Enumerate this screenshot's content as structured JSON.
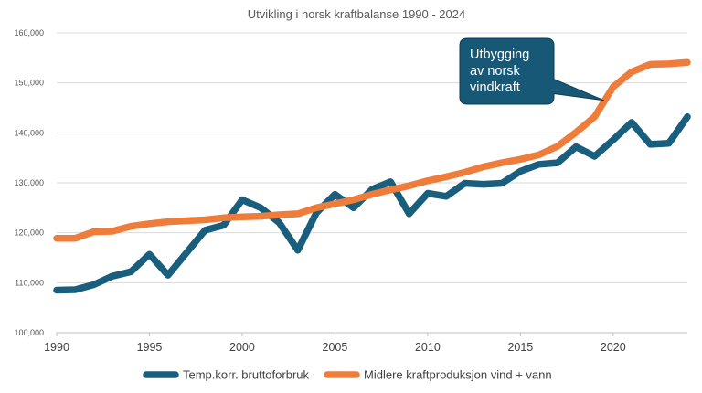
{
  "chart_data": {
    "type": "line",
    "title": "Utvikling i norsk kraftbalanse 1990 - 2024",
    "xlabel": "",
    "ylabel": "",
    "xlim": [
      1990,
      2024
    ],
    "ylim": [
      100000,
      160000
    ],
    "yticks": [
      "100,000",
      "110,000",
      "120,000",
      "130,000",
      "140,000",
      "150,000",
      "160,000"
    ],
    "ytick_values": [
      100000,
      110000,
      120000,
      130000,
      140000,
      150000,
      160000
    ],
    "xticks": [
      "1990",
      "1995",
      "2000",
      "2005",
      "2010",
      "2015",
      "2020"
    ],
    "xtick_values": [
      1990,
      1995,
      2000,
      2005,
      2010,
      2015,
      2020
    ],
    "grid": true,
    "legend_position": "bottom",
    "x": [
      1990,
      1991,
      1992,
      1993,
      1994,
      1995,
      1996,
      1997,
      1998,
      1999,
      2000,
      2001,
      2002,
      2003,
      2004,
      2005,
      2006,
      2007,
      2008,
      2009,
      2010,
      2011,
      2012,
      2013,
      2014,
      2015,
      2016,
      2017,
      2018,
      2019,
      2020,
      2021,
      2022,
      2023,
      2024
    ],
    "series": [
      {
        "name": "Temp.korr. bruttoforbruk",
        "color": "#1a5e7e",
        "values": [
          108500,
          108600,
          109600,
          111300,
          112200,
          115700,
          111500,
          116000,
          120500,
          121500,
          126600,
          125000,
          122000,
          116500,
          124000,
          127700,
          125000,
          128700,
          130200,
          123800,
          127900,
          127300,
          129900,
          129700,
          129900,
          132300,
          133700,
          134000,
          137200,
          135300,
          138600,
          142100,
          137700,
          137900,
          143200
        ]
      },
      {
        "name": "Midlere kraftproduksjon vind + vann",
        "color": "#ee7d3b",
        "values": [
          118900,
          118900,
          120200,
          120300,
          121300,
          121800,
          122200,
          122400,
          122600,
          123000,
          123200,
          123300,
          123600,
          123800,
          125000,
          125800,
          126600,
          127700,
          128600,
          129400,
          130400,
          131200,
          132100,
          133200,
          134000,
          134700,
          135600,
          137300,
          140100,
          143200,
          149200,
          152200,
          153700,
          153800,
          154100
        ]
      }
    ],
    "annotations": [
      {
        "text_lines": [
          "Utbygging",
          "av norsk",
          "vindkraft"
        ],
        "points_to_x": 2019.5,
        "points_to_y": 146500,
        "fill": "#175877"
      }
    ]
  }
}
